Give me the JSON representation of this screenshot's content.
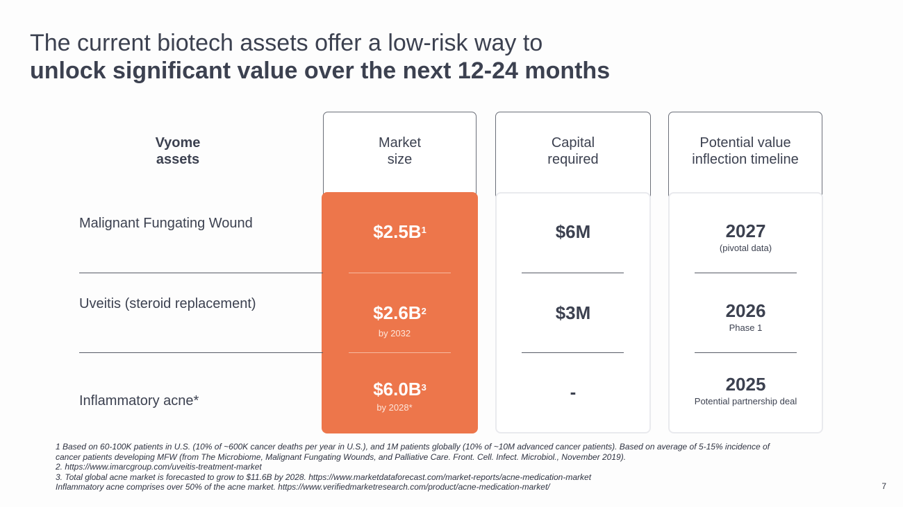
{
  "title": {
    "line1": "The current biotech assets offer a low-risk way to",
    "line2": "unlock significant value over the next 12-24 months"
  },
  "headers": {
    "assets": [
      "Vyome",
      "assets"
    ],
    "market_size": [
      "Market",
      "size"
    ],
    "capital": [
      "Capital",
      "required"
    ],
    "timeline": [
      "Potential value",
      "inflection timeline"
    ]
  },
  "rows": [
    {
      "asset": "Malignant Fungating Wound",
      "market_value": "$2.5B",
      "market_ref": "1",
      "market_note": "",
      "capital": "$6M",
      "timeline_year": "2027",
      "timeline_note": "(pivotal data)"
    },
    {
      "asset": "Uveitis (steroid replacement)",
      "market_value": "$2.6B",
      "market_ref": "2",
      "market_note": "by 2032",
      "capital": "$3M",
      "timeline_year": "2026",
      "timeline_note": "Phase 1"
    },
    {
      "asset": "Inflammatory acne*",
      "market_value": "$6.0B",
      "market_ref": "3",
      "market_note": "by 2028*",
      "capital": "-",
      "timeline_year": "2025",
      "timeline_note": "Potential partnership deal"
    }
  ],
  "footnotes": [
    "1 Based on 60-100K patients in U.S. (10% of ~600K cancer deaths per year in U.S.), and 1M patients globally (10% of ~10M advanced cancer patients). Based on average of 5-15% incidence of",
    "cancer patients developing MFW (from  The Microbiome, Malignant Fungating Wounds, and Palliative Care. Front. Cell. Infect. Microbiol., November 2019).",
    "2. https://www.imarcgroup.com/uveitis-treatment-market",
    "3. Total global acne market is forecasted to grow to $11.6B by 2028. https://www.marketdataforecast.com/market-reports/acne-medication-market",
    "Inflammatory acne comprises over 50% of the acne market. https://www.verifiedmarketresearch.com/product/acne-medication-market/"
  ],
  "page_number": "7",
  "colors": {
    "accent": "#ed764b",
    "text": "#3c4150"
  }
}
